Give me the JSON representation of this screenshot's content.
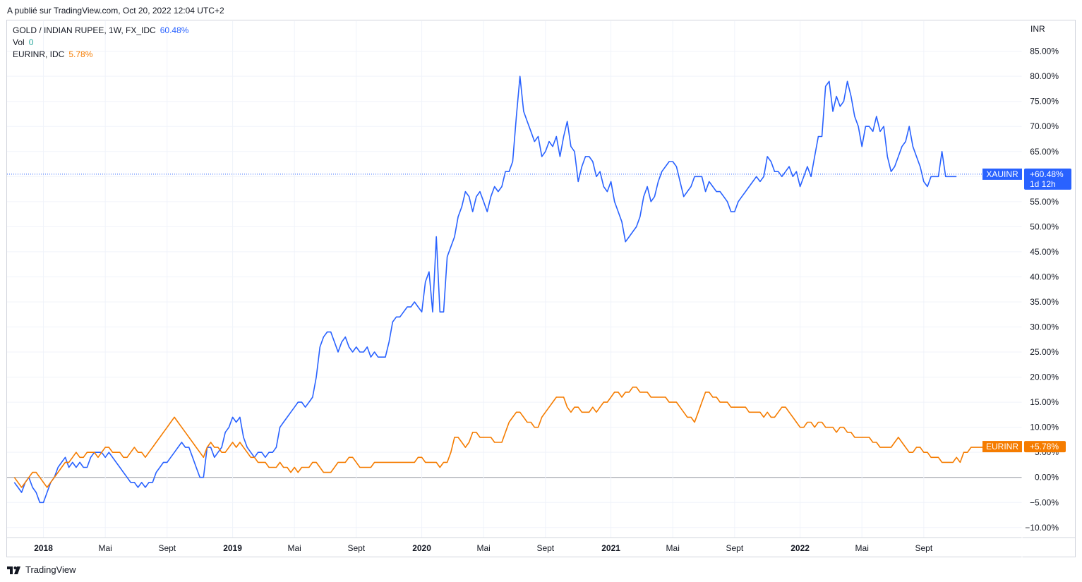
{
  "caption": "A publié sur TradingView.com, Oct 20, 2022 12:04 UTC+2",
  "brand": "TradingView",
  "legend": [
    {
      "label": "GOLD / INDIAN RUPEE, 1W, FX_IDC",
      "value": "60.48%",
      "color": "#2962ff"
    },
    {
      "label": "Vol",
      "value": "0",
      "color": "#26a69a"
    },
    {
      "label": "EURINR, IDC",
      "value": "5.78%",
      "color": "#f57c00"
    }
  ],
  "price_tags": [
    {
      "symbol": "XAUINR",
      "value": "+60.48%",
      "sub": "1d 12h",
      "color": "#2962ff"
    },
    {
      "symbol": "EURINR",
      "value": "+5.78%",
      "color": "#f57c00"
    }
  ],
  "chart_data": {
    "type": "line",
    "y_unit_label": "INR",
    "y_ticks": [
      85,
      80,
      75,
      70,
      65,
      60,
      55,
      50,
      45,
      40,
      35,
      30,
      25,
      20,
      15,
      10,
      5,
      0,
      -5,
      -10
    ],
    "y_tick_labels": [
      "85.00%",
      "80.00%",
      "75.00%",
      "70.00%",
      "65.00%",
      "60.00%",
      "55.00%",
      "50.00%",
      "45.00%",
      "40.00%",
      "35.00%",
      "30.00%",
      "25.00%",
      "20.00%",
      "15.00%",
      "10.00%",
      "5.00%",
      "0.00%",
      "−5.00%",
      "−10.00%"
    ],
    "ylim": [
      -12,
      91
    ],
    "x_ticks": [
      {
        "label": "2018",
        "year": true,
        "week": 8
      },
      {
        "label": "Mai",
        "year": false,
        "week": 25
      },
      {
        "label": "Sept",
        "year": false,
        "week": 42
      },
      {
        "label": "2019",
        "year": true,
        "week": 60
      },
      {
        "label": "Mai",
        "year": false,
        "week": 77
      },
      {
        "label": "Sept",
        "year": false,
        "week": 94
      },
      {
        "label": "2020",
        "year": true,
        "week": 112
      },
      {
        "label": "Mai",
        "year": false,
        "week": 129
      },
      {
        "label": "Sept",
        "year": false,
        "week": 146
      },
      {
        "label": "2021",
        "year": true,
        "week": 164
      },
      {
        "label": "Mai",
        "year": false,
        "week": 181
      },
      {
        "label": "Sept",
        "year": false,
        "week": 198
      },
      {
        "label": "2022",
        "year": true,
        "week": 216
      },
      {
        "label": "Mai",
        "year": false,
        "week": 233
      },
      {
        "label": "Sept",
        "year": false,
        "week": 250
      }
    ],
    "xlim": [
      -2,
      277
    ],
    "series": [
      {
        "name": "XAUINR",
        "color": "#2962ff",
        "values": [
          -1,
          -2,
          -3,
          -1,
          0,
          -2,
          -3,
          -5,
          -5,
          -3,
          -1,
          0,
          2,
          3,
          4,
          2,
          3,
          2,
          3,
          2,
          2,
          4,
          5,
          5,
          5,
          4,
          5,
          4,
          3,
          2,
          1,
          0,
          -1,
          -1,
          -2,
          -1,
          -2,
          -1,
          -1,
          1,
          2,
          3,
          3,
          4,
          5,
          6,
          7,
          6,
          6,
          4,
          2,
          0,
          0,
          6,
          6,
          4,
          5,
          6,
          9,
          10,
          12,
          11,
          12,
          8,
          6,
          5,
          4,
          5,
          5,
          4,
          5,
          5,
          6,
          10,
          11,
          12,
          13,
          14,
          15,
          15,
          14,
          15,
          16,
          20,
          26,
          28,
          29,
          29,
          27,
          25,
          27,
          28,
          26,
          25,
          26,
          25,
          25,
          26,
          24,
          25,
          24,
          24,
          24,
          27,
          31,
          32,
          32,
          33,
          34,
          34,
          35,
          34,
          33,
          39,
          41,
          33,
          48,
          33,
          33,
          44,
          46,
          48,
          52,
          54,
          57,
          56,
          53,
          56,
          57,
          55,
          53,
          56,
          58,
          57,
          58,
          61,
          61,
          63,
          72,
          80,
          73,
          71,
          69,
          67,
          68,
          64,
          65,
          67,
          66,
          68,
          64,
          68,
          71,
          66,
          65,
          59,
          62,
          64,
          64,
          63,
          60,
          61,
          58,
          57,
          59,
          55,
          53,
          51,
          47,
          48,
          49,
          50,
          52,
          56,
          58,
          55,
          56,
          59,
          61,
          62,
          63,
          63,
          62,
          59,
          56,
          57,
          58,
          60,
          60,
          60,
          57,
          59,
          58,
          57,
          57,
          56,
          55,
          53,
          53,
          55,
          56,
          57,
          58,
          59,
          60,
          59,
          60,
          64,
          63,
          61,
          61,
          60,
          61,
          62,
          60,
          61,
          58,
          60,
          62,
          60,
          64,
          68,
          68,
          78,
          79,
          73,
          76,
          74,
          75,
          79,
          76,
          72,
          70,
          66,
          70,
          70,
          69,
          72,
          69,
          70,
          64,
          61,
          62,
          64,
          66,
          67,
          70,
          66,
          64,
          62,
          59,
          58,
          60,
          60,
          60,
          65,
          60,
          60,
          60,
          60
        ]
      },
      {
        "name": "EURINR",
        "color": "#f57c00",
        "values": [
          0,
          -1,
          -2,
          -1,
          0,
          1,
          1,
          0,
          -1,
          -2,
          -1,
          0,
          1,
          2,
          3,
          3,
          4,
          5,
          4,
          4,
          5,
          5,
          5,
          4,
          5,
          6,
          6,
          5,
          5,
          5,
          4,
          4,
          5,
          6,
          5,
          5,
          4,
          5,
          6,
          7,
          8,
          9,
          10,
          11,
          12,
          11,
          10,
          9,
          8,
          7,
          6,
          5,
          4,
          6,
          7,
          6,
          6,
          5,
          5,
          6,
          7,
          6,
          7,
          6,
          5,
          4,
          4,
          3,
          3,
          3,
          2,
          2,
          2,
          3,
          2,
          2,
          1,
          2,
          1,
          2,
          2,
          2,
          3,
          3,
          2,
          1,
          1,
          1,
          2,
          3,
          3,
          3,
          4,
          4,
          3,
          2,
          2,
          2,
          2,
          3,
          3,
          3,
          3,
          3,
          3,
          3,
          3,
          3,
          3,
          3,
          3,
          4,
          4,
          3,
          3,
          3,
          3,
          2,
          3,
          3,
          5,
          8,
          8,
          7,
          6,
          7,
          9,
          9,
          8,
          8,
          8,
          8,
          7,
          7,
          7,
          9,
          11,
          12,
          13,
          13,
          12,
          11,
          11,
          10,
          10,
          12,
          13,
          14,
          15,
          16,
          16,
          16,
          14,
          13,
          14,
          14,
          13,
          13,
          13,
          14,
          13,
          14,
          15,
          15,
          16,
          17,
          17,
          16,
          17,
          17,
          18,
          18,
          17,
          17,
          17,
          16,
          16,
          16,
          16,
          16,
          15,
          15,
          15,
          14,
          13,
          12,
          12,
          11,
          13,
          15,
          17,
          17,
          16,
          16,
          15,
          15,
          15,
          14,
          14,
          14,
          14,
          14,
          13,
          13,
          13,
          13,
          12,
          13,
          12,
          12,
          13,
          14,
          14,
          13,
          12,
          11,
          10,
          10,
          11,
          11,
          10,
          11,
          11,
          10,
          10,
          10,
          9,
          10,
          10,
          9,
          9,
          8,
          8,
          8,
          8,
          8,
          7,
          7,
          6,
          6,
          6,
          6,
          7,
          8,
          7,
          6,
          5,
          5,
          6,
          6,
          5,
          5,
          4,
          4,
          4,
          3,
          3,
          3,
          3,
          4,
          3,
          5,
          5,
          6,
          6,
          6,
          6,
          6,
          6,
          6,
          6
        ]
      }
    ],
    "last_value_line": 60.48
  }
}
